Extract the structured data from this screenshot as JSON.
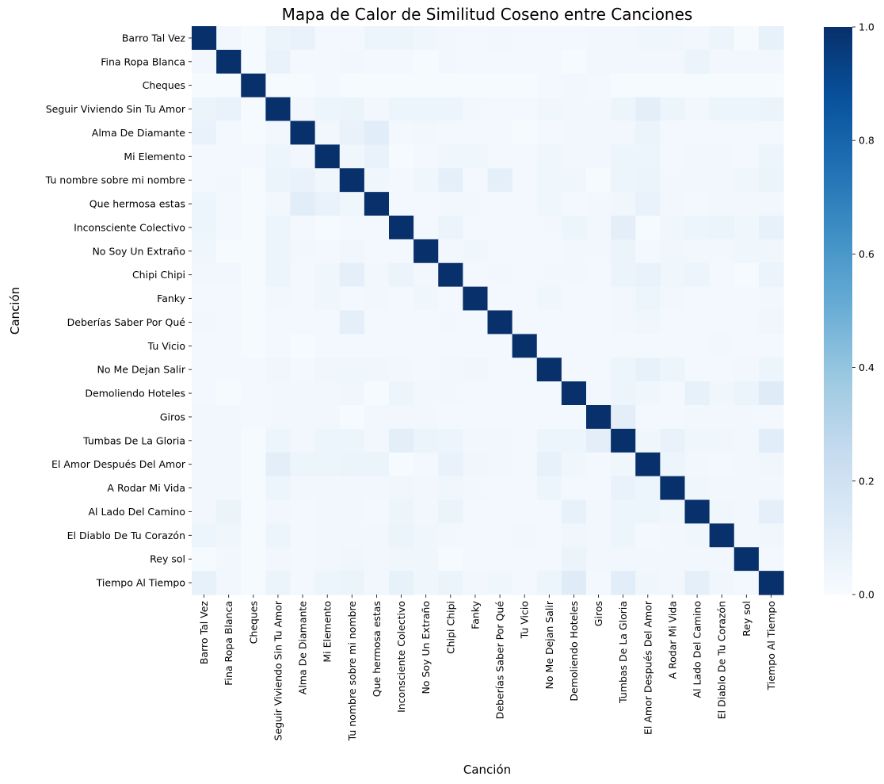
{
  "chart_data": {
    "type": "heatmap",
    "title": "Mapa de Calor de Similitud Coseno entre Canciones",
    "xlabel": "Canción",
    "ylabel": "Canción",
    "colormap": "Blues",
    "colors": {
      "low": "#f7fbff",
      "high": "#08306b"
    },
    "zlim": [
      0,
      1
    ],
    "colorbar_ticks": [
      "0.0",
      "0.2",
      "0.4",
      "0.6",
      "0.8",
      "1.0"
    ],
    "categories": [
      "Barro Tal Vez",
      "Fina Ropa Blanca",
      "Cheques",
      "Seguir Viviendo Sin Tu Amor",
      "Alma De Diamante",
      "Mi Elemento",
      "Tu nombre sobre mi nombre",
      "Que hermosa estas",
      "Inconsciente Colectivo",
      "No Soy Un Extraño",
      "Chipi Chipi",
      "Fanky",
      "Deberías Saber Por Qué",
      "Tu Vicio",
      "No Me Dejan Salir",
      "Demoliendo Hoteles",
      "Giros",
      "Tumbas De La Gloria",
      "El Amor Después Del Amor",
      "A Rodar Mi Vida",
      "Al Lado Del Camino",
      "El Diablo De Tu Corazón",
      "Rey sol",
      "Tiempo Al Tiempo"
    ],
    "values": [
      [
        1.0,
        0.03,
        0.01,
        0.06,
        0.07,
        0.02,
        0.02,
        0.05,
        0.05,
        0.04,
        0.03,
        0.02,
        0.03,
        0.02,
        0.02,
        0.02,
        0.03,
        0.03,
        0.04,
        0.04,
        0.03,
        0.05,
        0.01,
        0.08
      ],
      [
        0.03,
        1.0,
        0.01,
        0.07,
        0.02,
        0.02,
        0.03,
        0.02,
        0.02,
        0.01,
        0.03,
        0.02,
        0.02,
        0.02,
        0.02,
        0.01,
        0.03,
        0.03,
        0.03,
        0.03,
        0.06,
        0.03,
        0.03,
        0.03
      ],
      [
        0.01,
        0.01,
        1.0,
        0.01,
        0.01,
        0.02,
        0.01,
        0.01,
        0.01,
        0.01,
        0.01,
        0.01,
        0.01,
        0.01,
        0.02,
        0.03,
        0.02,
        0.01,
        0.01,
        0.01,
        0.01,
        0.01,
        0.01,
        0.01
      ],
      [
        0.06,
        0.07,
        0.01,
        1.0,
        0.03,
        0.05,
        0.06,
        0.03,
        0.05,
        0.05,
        0.05,
        0.03,
        0.02,
        0.02,
        0.04,
        0.03,
        0.03,
        0.05,
        0.1,
        0.05,
        0.03,
        0.05,
        0.05,
        0.06
      ],
      [
        0.07,
        0.02,
        0.01,
        0.03,
        1.0,
        0.03,
        0.07,
        0.11,
        0.02,
        0.03,
        0.02,
        0.02,
        0.02,
        0.01,
        0.02,
        0.03,
        0.03,
        0.03,
        0.06,
        0.02,
        0.02,
        0.02,
        0.02,
        0.02
      ],
      [
        0.02,
        0.02,
        0.02,
        0.05,
        0.03,
        1.0,
        0.04,
        0.07,
        0.01,
        0.02,
        0.04,
        0.04,
        0.02,
        0.02,
        0.04,
        0.03,
        0.03,
        0.05,
        0.05,
        0.02,
        0.03,
        0.03,
        0.02,
        0.05
      ],
      [
        0.02,
        0.03,
        0.01,
        0.06,
        0.07,
        0.04,
        1.0,
        0.04,
        0.02,
        0.04,
        0.09,
        0.02,
        0.09,
        0.02,
        0.04,
        0.04,
        0.01,
        0.05,
        0.06,
        0.03,
        0.03,
        0.03,
        0.04,
        0.06
      ],
      [
        0.05,
        0.02,
        0.01,
        0.03,
        0.11,
        0.07,
        0.04,
        1.0,
        0.02,
        0.02,
        0.03,
        0.03,
        0.02,
        0.02,
        0.04,
        0.02,
        0.03,
        0.04,
        0.07,
        0.03,
        0.02,
        0.03,
        0.03,
        0.03
      ],
      [
        0.05,
        0.02,
        0.01,
        0.05,
        0.02,
        0.01,
        0.02,
        0.02,
        1.0,
        0.02,
        0.06,
        0.02,
        0.02,
        0.02,
        0.03,
        0.05,
        0.03,
        0.1,
        0.01,
        0.04,
        0.05,
        0.06,
        0.04,
        0.08
      ],
      [
        0.04,
        0.01,
        0.01,
        0.05,
        0.03,
        0.02,
        0.04,
        0.02,
        0.02,
        1.0,
        0.03,
        0.04,
        0.02,
        0.02,
        0.02,
        0.03,
        0.03,
        0.06,
        0.02,
        0.04,
        0.03,
        0.03,
        0.04,
        0.04
      ],
      [
        0.03,
        0.03,
        0.01,
        0.05,
        0.02,
        0.04,
        0.09,
        0.03,
        0.06,
        0.03,
        1.0,
        0.02,
        0.03,
        0.02,
        0.03,
        0.03,
        0.02,
        0.06,
        0.07,
        0.04,
        0.05,
        0.02,
        0.01,
        0.06
      ],
      [
        0.02,
        0.02,
        0.01,
        0.03,
        0.02,
        0.04,
        0.02,
        0.03,
        0.02,
        0.04,
        0.02,
        1.0,
        0.02,
        0.02,
        0.04,
        0.02,
        0.02,
        0.03,
        0.05,
        0.03,
        0.02,
        0.02,
        0.02,
        0.03
      ],
      [
        0.03,
        0.02,
        0.01,
        0.02,
        0.02,
        0.02,
        0.09,
        0.02,
        0.02,
        0.02,
        0.03,
        0.02,
        1.0,
        0.02,
        0.02,
        0.02,
        0.02,
        0.03,
        0.04,
        0.02,
        0.02,
        0.02,
        0.02,
        0.04
      ],
      [
        0.02,
        0.02,
        0.01,
        0.02,
        0.01,
        0.02,
        0.02,
        0.02,
        0.02,
        0.02,
        0.02,
        0.02,
        0.02,
        1.0,
        0.02,
        0.02,
        0.02,
        0.02,
        0.02,
        0.02,
        0.02,
        0.03,
        0.02,
        0.02
      ],
      [
        0.02,
        0.02,
        0.02,
        0.04,
        0.02,
        0.04,
        0.04,
        0.04,
        0.03,
        0.02,
        0.03,
        0.04,
        0.02,
        0.02,
        1.0,
        0.02,
        0.02,
        0.05,
        0.08,
        0.05,
        0.02,
        0.02,
        0.03,
        0.05
      ],
      [
        0.02,
        0.01,
        0.02,
        0.03,
        0.03,
        0.03,
        0.04,
        0.01,
        0.05,
        0.03,
        0.03,
        0.02,
        0.02,
        0.02,
        0.02,
        1.0,
        0.03,
        0.05,
        0.04,
        0.02,
        0.08,
        0.04,
        0.06,
        0.12
      ],
      [
        0.03,
        0.03,
        0.02,
        0.03,
        0.03,
        0.03,
        0.01,
        0.03,
        0.03,
        0.03,
        0.02,
        0.02,
        0.02,
        0.02,
        0.02,
        0.02,
        1.0,
        0.1,
        0.02,
        0.02,
        0.03,
        0.03,
        0.03,
        0.02
      ],
      [
        0.03,
        0.03,
        0.01,
        0.05,
        0.03,
        0.05,
        0.05,
        0.03,
        0.1,
        0.06,
        0.05,
        0.03,
        0.03,
        0.02,
        0.05,
        0.05,
        0.1,
        1.0,
        0.04,
        0.07,
        0.04,
        0.04,
        0.03,
        0.11
      ],
      [
        0.03,
        0.03,
        0.01,
        0.1,
        0.05,
        0.05,
        0.06,
        0.06,
        0.01,
        0.02,
        0.07,
        0.04,
        0.03,
        0.02,
        0.08,
        0.04,
        0.02,
        0.04,
        1.0,
        0.05,
        0.03,
        0.02,
        0.03,
        0.04
      ],
      [
        0.03,
        0.03,
        0.01,
        0.05,
        0.03,
        0.03,
        0.03,
        0.03,
        0.04,
        0.03,
        0.04,
        0.03,
        0.02,
        0.02,
        0.05,
        0.02,
        0.02,
        0.07,
        0.05,
        1.0,
        0.04,
        0.03,
        0.03,
        0.03
      ],
      [
        0.03,
        0.06,
        0.01,
        0.03,
        0.02,
        0.03,
        0.03,
        0.02,
        0.05,
        0.03,
        0.06,
        0.02,
        0.02,
        0.02,
        0.02,
        0.08,
        0.03,
        0.05,
        0.05,
        0.04,
        1.0,
        0.04,
        0.03,
        0.09
      ],
      [
        0.05,
        0.04,
        0.01,
        0.05,
        0.02,
        0.03,
        0.03,
        0.03,
        0.06,
        0.04,
        0.03,
        0.02,
        0.02,
        0.03,
        0.02,
        0.04,
        0.03,
        0.05,
        0.02,
        0.03,
        0.04,
        1.0,
        0.03,
        0.04
      ],
      [
        0.01,
        0.03,
        0.01,
        0.03,
        0.02,
        0.03,
        0.04,
        0.03,
        0.04,
        0.04,
        0.01,
        0.02,
        0.02,
        0.02,
        0.02,
        0.06,
        0.03,
        0.03,
        0.03,
        0.03,
        0.03,
        0.03,
        1.0,
        0.02
      ],
      [
        0.08,
        0.03,
        0.01,
        0.06,
        0.02,
        0.05,
        0.06,
        0.03,
        0.08,
        0.04,
        0.06,
        0.03,
        0.04,
        0.02,
        0.05,
        0.12,
        0.02,
        0.11,
        0.04,
        0.03,
        0.09,
        0.04,
        0.02,
        1.0
      ]
    ]
  }
}
